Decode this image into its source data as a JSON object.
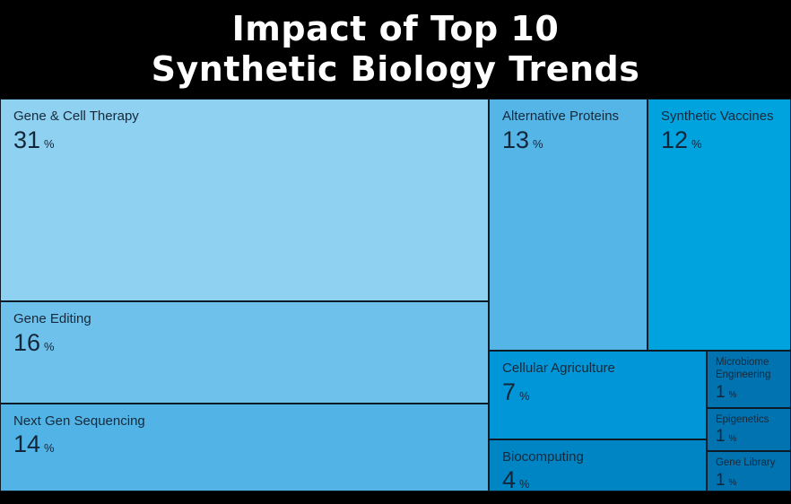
{
  "title": {
    "line1": "Impact of Top 10",
    "line2": "Synthetic Biology Trends"
  },
  "chart_data": {
    "type": "treemap",
    "title": "Impact of Top 10 Synthetic Biology Trends",
    "unit": "%",
    "total_percent": 100,
    "cells": [
      {
        "label": "Gene & Cell Therapy",
        "value": "31",
        "color": "#8ED1F0"
      },
      {
        "label": "Gene Editing",
        "value": "16",
        "color": "#6EC1EB"
      },
      {
        "label": "Next Gen Sequencing",
        "value": "14",
        "color": "#52B4E6"
      },
      {
        "label": "Alternative Proteins",
        "value": "13",
        "color": "#54B5E6"
      },
      {
        "label": "Synthetic Vaccines",
        "value": "12",
        "color": "#00A3DE"
      },
      {
        "label": "Cellular Agriculture",
        "value": "7",
        "color": "#0096D7"
      },
      {
        "label": "Biocomputing",
        "value": "4",
        "color": "#0085C4"
      },
      {
        "label": "Microbiome Engineering",
        "value": "1",
        "color": "#0073B0"
      },
      {
        "label": "Epigenetics",
        "value": "1",
        "color": "#0073B0"
      },
      {
        "label": "Gene Library",
        "value": "1",
        "color": "#0073B0"
      }
    ]
  }
}
